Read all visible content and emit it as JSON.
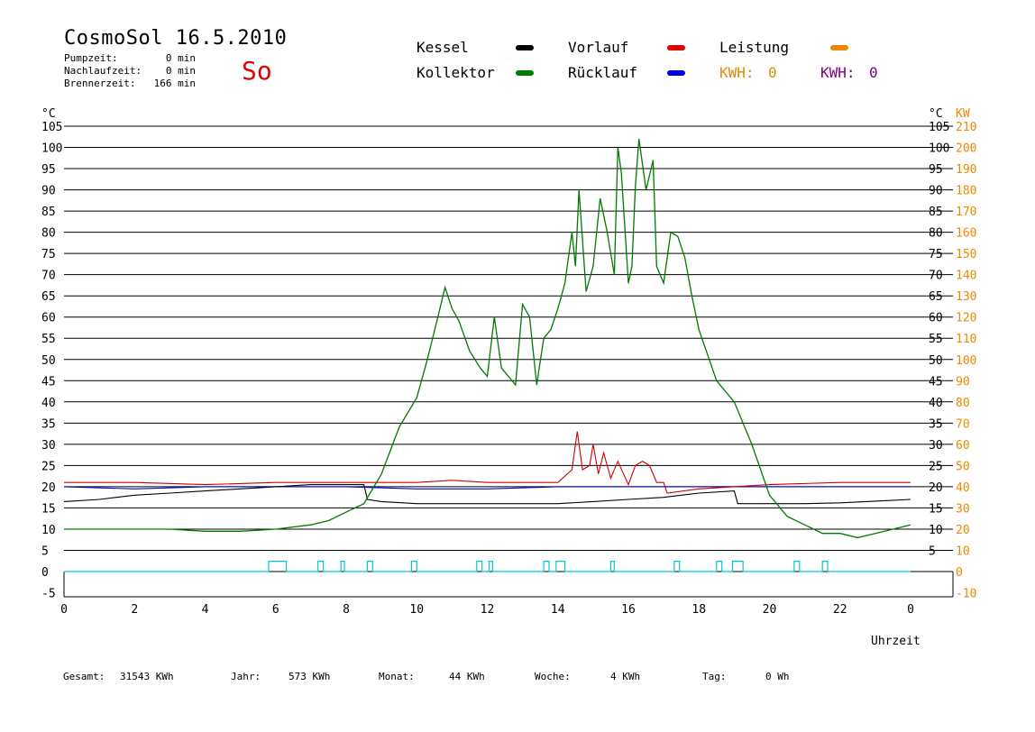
{
  "header": {
    "title": "CosmoSol 16.5.2010",
    "day": "So",
    "pump_label": "Pumpzeit:",
    "pump_value": "0 min",
    "run_label": "Nachlaufzeit:",
    "run_value": "0 min",
    "burner_label": "Brennerzeit:",
    "burner_value": "166 min"
  },
  "legend": {
    "kessel": "Kessel",
    "kollektor": "Kollektor",
    "vorlauf": "Vorlauf",
    "ruecklauf": "Rücklauf",
    "leistung": "Leistung",
    "kwh1_label": "KWH:",
    "kwh1_value": "0",
    "kwh2_label": "KWH:",
    "kwh2_value": "0"
  },
  "axes": {
    "unit_left": "°C",
    "unit_right": "°C",
    "unit_kw": "KW",
    "xlabel": "Uhrzeit"
  },
  "colors": {
    "kessel": "#000000",
    "kollektor": "#007a00",
    "vorlauf": "#cc0000",
    "ruecklauf": "#0000cc",
    "leistung": "#ee8800",
    "kwh2": "#800080",
    "pump": "#00c8d8"
  },
  "footer": {
    "gesamt_label": "Gesamt:",
    "gesamt_value": "31543 KWh",
    "jahr_label": "Jahr:",
    "jahr_value": "573 KWh",
    "monat_label": "Monat:",
    "monat_value": "44 KWh",
    "woche_label": "Woche:",
    "woche_value": "4 KWh",
    "tag_label": "Tag:",
    "tag_value": "0 Wh"
  },
  "chart_data": {
    "type": "line",
    "xlabel": "Uhrzeit",
    "xlim": [
      0,
      24
    ],
    "ylim": [
      -5,
      105
    ],
    "y2lim": [
      -10,
      210
    ],
    "x_ticks": [
      "0",
      "2",
      "4",
      "6",
      "8",
      "10",
      "12",
      "14",
      "16",
      "18",
      "20",
      "22",
      "0"
    ],
    "y_ticks": [
      -5,
      0,
      5,
      10,
      15,
      20,
      25,
      30,
      35,
      40,
      45,
      50,
      55,
      60,
      65,
      70,
      75,
      80,
      85,
      90,
      95,
      100,
      105
    ],
    "y_ticks_right": [
      5,
      10,
      15,
      20,
      25,
      30,
      35,
      40,
      45,
      50,
      55,
      60,
      65,
      70,
      75,
      80,
      85,
      90,
      95,
      100,
      105
    ],
    "y2_ticks": [
      -10,
      0,
      10,
      20,
      30,
      40,
      50,
      60,
      70,
      80,
      90,
      100,
      110,
      120,
      130,
      140,
      150,
      160,
      170,
      180,
      190,
      200,
      210
    ],
    "grid": true,
    "series": [
      {
        "name": "Kollektor",
        "x": [
          0,
          1,
          2,
          3,
          4,
          5,
          6,
          7,
          7.5,
          8,
          8.5,
          9,
          9.5,
          10,
          10.3,
          10.6,
          10.8,
          11,
          11.2,
          11.5,
          11.8,
          12,
          12.2,
          12.4,
          12.6,
          12.8,
          13,
          13.2,
          13.4,
          13.6,
          13.8,
          14,
          14.2,
          14.4,
          14.5,
          14.6,
          14.8,
          15,
          15.2,
          15.4,
          15.6,
          15.7,
          15.8,
          16,
          16.1,
          16.2,
          16.3,
          16.5,
          16.7,
          16.8,
          17,
          17.2,
          17.4,
          17.6,
          17.8,
          18,
          18.5,
          19,
          19.5,
          20,
          20.5,
          21,
          21.5,
          22,
          22.5,
          23,
          23.5,
          24
        ],
        "y": [
          10,
          10,
          10,
          10,
          9.5,
          9.5,
          10,
          11,
          12,
          14,
          16,
          23,
          34,
          41,
          50,
          60,
          67,
          62,
          59,
          52,
          48,
          46,
          60,
          48,
          46,
          44,
          63,
          60,
          44,
          55,
          57,
          62,
          68,
          80,
          72,
          90,
          66,
          72,
          88,
          80,
          70,
          100,
          94,
          68,
          72,
          91,
          102,
          90,
          97,
          72,
          68,
          80,
          79,
          74,
          65,
          57,
          45,
          40,
          30,
          18,
          13,
          11,
          9,
          9,
          8,
          9,
          10,
          11
        ]
      },
      {
        "name": "Kessel",
        "x": [
          0,
          1,
          2,
          3,
          4,
          5,
          6,
          7,
          8,
          8.5,
          8.6,
          9,
          10,
          11,
          12,
          13,
          14,
          15,
          16,
          17,
          18,
          19,
          19.1,
          20,
          21,
          22,
          23,
          24
        ],
        "y": [
          16.5,
          17,
          18,
          18.5,
          19,
          19.5,
          20,
          20.5,
          20.5,
          20.5,
          17,
          16.5,
          16,
          16,
          16,
          16,
          16,
          16.5,
          17,
          17.5,
          18.5,
          19,
          16,
          16,
          16,
          16.2,
          16.6,
          17
        ]
      },
      {
        "name": "Vorlauf",
        "x": [
          0,
          2,
          4,
          6,
          8,
          10,
          11,
          12,
          13,
          14,
          14.4,
          14.55,
          14.7,
          14.9,
          15,
          15.15,
          15.3,
          15.5,
          15.7,
          16,
          16.2,
          16.4,
          16.6,
          16.8,
          17,
          17.1,
          18,
          19,
          20,
          22,
          24
        ],
        "y": [
          21,
          21,
          20.5,
          21,
          21,
          21,
          21.5,
          21,
          21,
          21,
          24,
          33,
          24,
          25,
          30,
          23,
          28,
          22,
          26,
          20.5,
          25,
          26,
          25,
          21,
          21,
          18.5,
          19.5,
          20,
          20.5,
          21,
          21
        ]
      },
      {
        "name": "Rücklauf",
        "x": [
          0,
          2,
          4,
          6,
          8,
          10,
          12,
          14,
          16,
          18,
          20,
          22,
          24
        ],
        "y": [
          20,
          19.5,
          20,
          20,
          20,
          19.5,
          19.5,
          20,
          20,
          20,
          20,
          20,
          20
        ]
      },
      {
        "name": "Pumpe",
        "type": "pulses",
        "y_off": 0,
        "y_on": 2,
        "intervals": [
          [
            5.8,
            6.3
          ],
          [
            7.2,
            7.35
          ],
          [
            7.85,
            7.95
          ],
          [
            8.6,
            8.75
          ],
          [
            9.85,
            10
          ],
          [
            11.7,
            11.85
          ],
          [
            12.05,
            12.15
          ],
          [
            13.6,
            13.75
          ],
          [
            13.95,
            14.2
          ],
          [
            15.5,
            15.6
          ],
          [
            17.3,
            17.45
          ],
          [
            18.5,
            18.65
          ],
          [
            18.95,
            19.25
          ],
          [
            20.7,
            20.85
          ],
          [
            21.5,
            21.65
          ]
        ]
      }
    ]
  }
}
